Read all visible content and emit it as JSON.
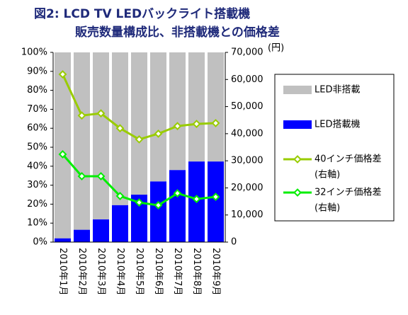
{
  "chart_data": {
    "type": "combo",
    "title": "図2: LCD TV LEDバックライト搭載機",
    "subtitle": "販売数量構成比、非搭載機との価格差",
    "y2_unit": "(円)",
    "legend_note": "(右軸)",
    "legend": "right",
    "categories": [
      "2010年1月",
      "2010年2月",
      "2010年3月",
      "2010年4月",
      "2010年5月",
      "2010年6月",
      "2010年7月",
      "2010年8月",
      "2010年9月"
    ],
    "series": [
      {
        "name": "LED搭載機",
        "type": "bar",
        "color": "#0000ff",
        "values": [
          2,
          6.5,
          12,
          19.5,
          25,
          32,
          38,
          42.5,
          42.5
        ]
      },
      {
        "name": "LED非搭載",
        "type": "bar",
        "color": "#c0c0c0",
        "values": [
          98,
          93.5,
          88,
          80.5,
          75,
          68,
          62,
          57.5,
          57.5
        ]
      },
      {
        "name": "40インチ価格差",
        "type": "line",
        "axis": "y2",
        "color": "#99cc00",
        "values": [
          61900,
          46700,
          47500,
          42000,
          37900,
          40000,
          42800,
          43600,
          43900
        ]
      },
      {
        "name": "32インチ価格差",
        "type": "line",
        "axis": "y2",
        "color": "#00ee00",
        "values": [
          32400,
          24300,
          24300,
          17000,
          14600,
          13600,
          18000,
          15900,
          16700
        ]
      }
    ],
    "ylim": [
      0,
      100
    ],
    "yticks": [
      {
        "value": 0,
        "label": "0%"
      },
      {
        "value": 10,
        "label": "10%"
      },
      {
        "value": 20,
        "label": "20%"
      },
      {
        "value": 30,
        "label": "30%"
      },
      {
        "value": 40,
        "label": "40%"
      },
      {
        "value": 50,
        "label": "50%"
      },
      {
        "value": 60,
        "label": "60%"
      },
      {
        "value": 70,
        "label": "70%"
      },
      {
        "value": 80,
        "label": "80%"
      },
      {
        "value": 90,
        "label": "90%"
      },
      {
        "value": 100,
        "label": "100%"
      }
    ],
    "y2lim": [
      0,
      70000
    ],
    "y2ticks": [
      0,
      {
        "value": 10000,
        "label": "10,000"
      },
      {
        "value": 20000,
        "label": "20,000"
      },
      {
        "value": 30000,
        "label": "30,000"
      },
      {
        "value": 40000,
        "label": "40,000"
      },
      {
        "value": 50000,
        "label": "50,000"
      },
      {
        "value": 60000,
        "label": "60,000"
      },
      {
        "value": 70000,
        "label": "70,000"
      }
    ],
    "grid": false
  }
}
